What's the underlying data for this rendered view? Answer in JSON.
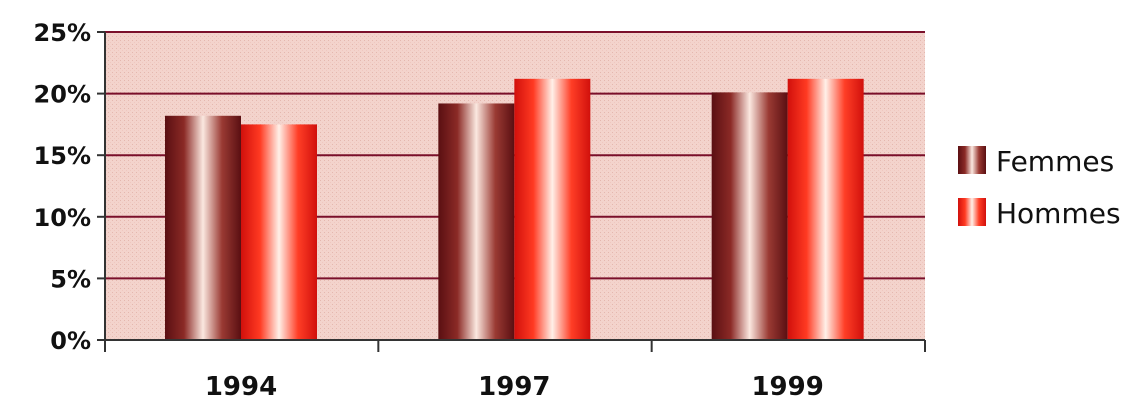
{
  "chart_data": {
    "type": "bar",
    "categories": [
      "1994",
      "1997",
      "1999"
    ],
    "series": [
      {
        "name": "Femmes",
        "values": [
          18.2,
          19.2,
          20.1
        ],
        "color": "#8b1c1c"
      },
      {
        "name": "Hommes",
        "values": [
          17.5,
          21.2,
          21.2
        ],
        "color": "#ff2a1a"
      }
    ],
    "yticks": [
      "0%",
      "5%",
      "10%",
      "15%",
      "20%",
      "25%"
    ],
    "ylim": [
      0,
      25
    ],
    "grid": true,
    "legend_position": "right",
    "plot_background": "#f4d6d0",
    "gridline_color": "#7a0f2a"
  }
}
